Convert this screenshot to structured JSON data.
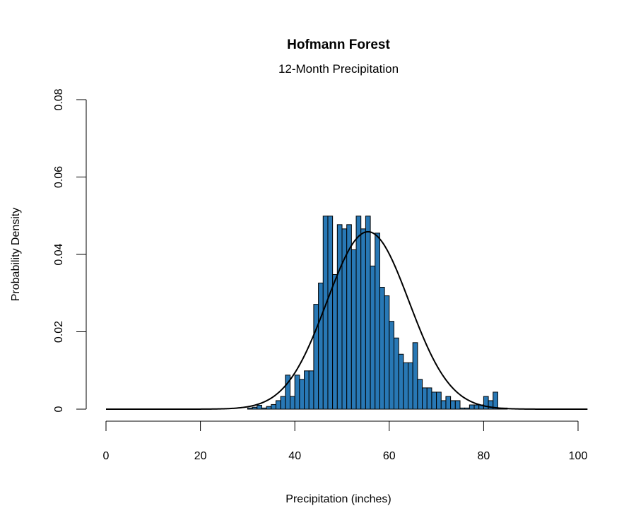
{
  "chart_data": {
    "type": "bar",
    "title": "Hofmann Forest",
    "subtitle": "12-Month Precipitation",
    "xlabel": "Precipitation (inches)",
    "ylabel": "Probability Density",
    "xlim": [
      0,
      102
    ],
    "ylim": [
      0,
      0.08
    ],
    "x_ticks": [
      0,
      20,
      40,
      60,
      80,
      100
    ],
    "y_ticks": [
      0,
      0.02,
      0.04,
      0.06,
      0.08
    ],
    "y_tick_labels": [
      "0",
      "0.02",
      "0.04",
      "0.06",
      "0.08"
    ],
    "bin_width": 1,
    "bar_color": "#2878b5",
    "grid": false,
    "series": [
      {
        "type": "histogram",
        "bins_start": [
          30,
          31,
          32,
          33,
          34,
          35,
          36,
          37,
          38,
          39,
          40,
          41,
          42,
          43,
          44,
          45,
          46,
          47,
          48,
          49,
          50,
          51,
          52,
          53,
          54,
          55,
          56,
          57,
          58,
          59,
          60,
          61,
          62,
          63,
          64,
          65,
          66,
          67,
          68,
          69,
          70,
          71,
          72,
          73,
          74,
          75,
          76,
          77,
          78,
          79,
          80,
          81,
          82,
          83,
          84,
          85,
          86,
          87,
          88,
          89,
          90,
          91
        ],
        "values": [
          0.0003,
          0.0005,
          0.001,
          0.0003,
          0.0007,
          0.0012,
          0.0022,
          0.0033,
          0.0088,
          0.0033,
          0.0088,
          0.0077,
          0.0099,
          0.0099,
          0.0271,
          0.0326,
          0.0499,
          0.0499,
          0.0348,
          0.0477,
          0.0466,
          0.0477,
          0.0412,
          0.0499,
          0.0466,
          0.0499,
          0.037,
          0.0455,
          0.0315,
          0.0293,
          0.0227,
          0.0184,
          0.0142,
          0.012,
          0.012,
          0.0172,
          0.0077,
          0.0055,
          0.0055,
          0.0044,
          0.0044,
          0.0022,
          0.0033,
          0.0022,
          0.0022,
          0.0003,
          0.0003,
          0.0011,
          0.0011,
          0.0011,
          0.0033,
          0.0022,
          0.0044,
          0.0003,
          0.0003,
          0,
          0,
          0,
          0,
          0,
          0,
          0
        ]
      },
      {
        "type": "line",
        "distribution": "normal",
        "mean": 55.5,
        "sd": 8.7,
        "x_range": [
          0,
          102
        ]
      }
    ]
  }
}
